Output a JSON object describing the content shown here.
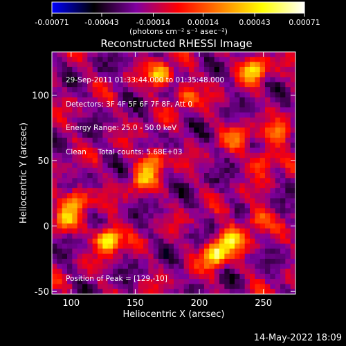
{
  "chart_data": {
    "type": "heatmap",
    "title": "Reconstructed RHESSI Image",
    "xlabel": "Heliocentric X (arcsec)",
    "ylabel": "Heliocentric Y (arcsec)",
    "xlim": [
      85,
      275
    ],
    "ylim": [
      -52,
      133
    ],
    "x_ticks": [
      100,
      150,
      200,
      250
    ],
    "y_ticks": [
      -50,
      0,
      50,
      100
    ],
    "colorbar": {
      "range": [
        -0.00071,
        0.00071
      ],
      "tick_values": [
        -0.00071,
        -0.00043,
        -0.00014,
        0.00014,
        0.00043,
        0.00071
      ],
      "tick_labels": [
        "-0.00071",
        "-0.00043",
        "-0.00014",
        "0.00014",
        "0.00043",
        "0.00071"
      ],
      "units": "(photons cm⁻² s⁻¹ asec⁻²)",
      "colors": [
        "#0000ff",
        "#000000",
        "#8000a0",
        "#ff0000",
        "#ff8000",
        "#ffff00",
        "#ffffff"
      ]
    },
    "peak": [
      129,
      -10
    ],
    "bright_sources": [
      {
        "x": 129,
        "y": -10,
        "level": 1.0
      },
      {
        "x": 212,
        "y": -22,
        "level": 0.9
      },
      {
        "x": 225,
        "y": -10,
        "level": 0.75
      },
      {
        "x": 170,
        "y": 115,
        "level": 0.7
      },
      {
        "x": 243,
        "y": 120,
        "level": 0.75
      },
      {
        "x": 165,
        "y": 50,
        "level": 0.6
      },
      {
        "x": 155,
        "y": 35,
        "level": 0.5
      },
      {
        "x": 105,
        "y": 20,
        "level": 0.6
      },
      {
        "x": 95,
        "y": 5,
        "level": 0.5
      },
      {
        "x": 190,
        "y": 100,
        "level": 0.45
      },
      {
        "x": 250,
        "y": 50,
        "level": 0.55
      },
      {
        "x": 262,
        "y": 70,
        "level": 0.5
      },
      {
        "x": 245,
        "y": 5,
        "level": 0.5
      },
      {
        "x": 230,
        "y": 70,
        "level": 0.4
      }
    ]
  },
  "info": {
    "line1": "29-Sep-2011 01:33:44.000 to 01:35:48.000",
    "line2": "Detectors: 3F 4F 5F 6F 7F 8F, Att 0",
    "line3": "Energy Range: 25.0 - 50.0 keV",
    "line4": "Clean     Total counts: 5.68E+03",
    "peak_text": "Position of Peak = [129,-10]"
  },
  "footer_date": "14-May-2022 18:09"
}
